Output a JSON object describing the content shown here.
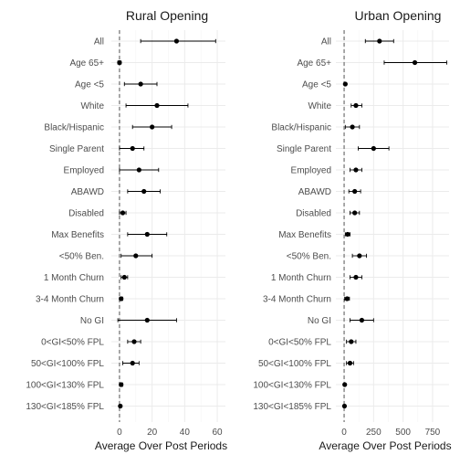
{
  "chart_data": [
    {
      "type": "errorbar",
      "title": "Rural Opening",
      "xlabel": "Average Over Post Periods",
      "ylabel": "",
      "xlim": [
        -5,
        65
      ],
      "xticks": [
        0,
        20,
        40,
        60
      ],
      "reference_line": 0,
      "categories": [
        "All",
        "Age 65+",
        "Age <5",
        "White",
        "Black/Hispanic",
        "Single Parent",
        "Employed",
        "ABAWD",
        "Disabled",
        "Max Benefits",
        "<50% Ben.",
        "1 Month Churn",
        "3-4 Month Churn",
        "No GI",
        "0<GI<50% FPL",
        "50<GI<100% FPL",
        "100<GI<130% FPL",
        "130<GI<185% FPL"
      ],
      "estimates": [
        35,
        0,
        13,
        23,
        20,
        8,
        12,
        15,
        2,
        17,
        10,
        3,
        1,
        17,
        9,
        8,
        1,
        0.5
      ],
      "lower": [
        13,
        -1,
        3,
        4,
        8,
        0,
        0,
        5,
        0,
        5,
        1,
        1,
        0,
        -1,
        5,
        2,
        0,
        0
      ],
      "upper": [
        59,
        1,
        23,
        42,
        32,
        15,
        24,
        25,
        4,
        29,
        20,
        5,
        2,
        35,
        13,
        12,
        2,
        1
      ]
    },
    {
      "type": "errorbar",
      "title": "Urban Opening",
      "xlabel": "Average Over Post Periods",
      "ylabel": "",
      "xlim": [
        -70,
        890
      ],
      "xticks": [
        0,
        250,
        500,
        750
      ],
      "reference_line": 0,
      "categories": [
        "All",
        "Age 65+",
        "Age <5",
        "White",
        "Black/Hispanic",
        "Single Parent",
        "Employed",
        "ABAWD",
        "Disabled",
        "Max Benefits",
        "<50% Ben.",
        "1 Month Churn",
        "3-4 Month Churn",
        "No GI",
        "0<GI<50% FPL",
        "50<GI<100% FPL",
        "100<GI<130% FPL",
        "130<GI<185% FPL"
      ],
      "estimates": [
        300,
        600,
        10,
        100,
        70,
        250,
        100,
        90,
        90,
        30,
        130,
        100,
        25,
        150,
        60,
        50,
        5,
        3
      ],
      "lower": [
        180,
        340,
        5,
        60,
        10,
        120,
        50,
        40,
        50,
        10,
        70,
        50,
        5,
        50,
        20,
        20,
        0,
        0
      ],
      "upper": [
        420,
        870,
        15,
        150,
        130,
        380,
        150,
        140,
        130,
        50,
        190,
        150,
        45,
        250,
        100,
        80,
        10,
        6
      ]
    }
  ]
}
